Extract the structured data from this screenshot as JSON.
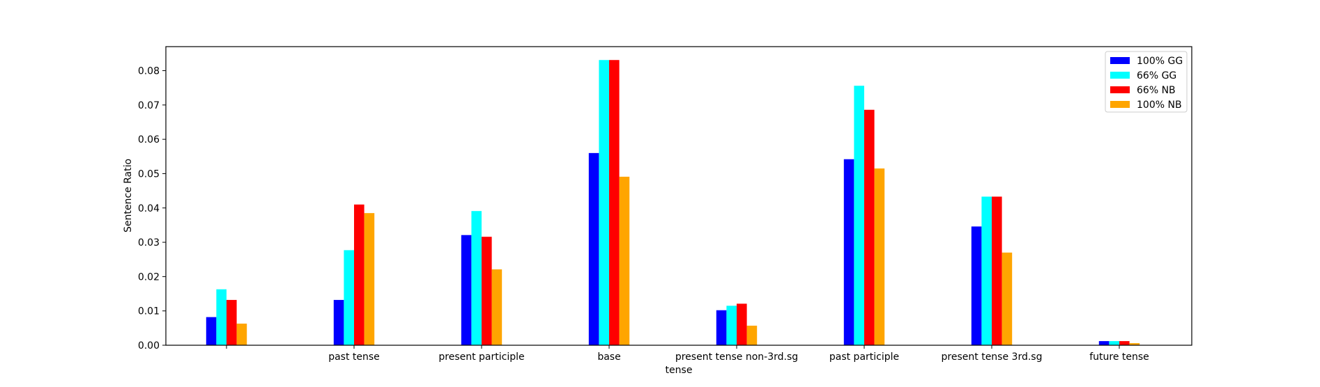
{
  "chart_data": {
    "type": "bar",
    "xlabel": "tense",
    "ylabel": "Sentence Ratio",
    "ylim": [
      0,
      0.087
    ],
    "yticks": [
      0.0,
      0.01,
      0.02,
      0.03,
      0.04,
      0.05,
      0.06,
      0.07,
      0.08
    ],
    "ytick_labels": [
      "0.00",
      "0.01",
      "0.02",
      "0.03",
      "0.04",
      "0.05",
      "0.06",
      "0.07",
      "0.08"
    ],
    "categories": [
      "",
      "past tense",
      "present participle",
      "base",
      "present tense non-3rd.sg",
      "past participle",
      "present tense 3rd.sg",
      "future tense"
    ],
    "legend_position": "top-right",
    "grid": false,
    "series": [
      {
        "name": "100% GG",
        "color": "#0000ff",
        "values": [
          0.0082,
          0.0132,
          0.0321,
          0.056,
          0.0102,
          0.0542,
          0.0346,
          0.0012
        ]
      },
      {
        "name": "66% GG",
        "color": "#00ffff",
        "values": [
          0.0163,
          0.0277,
          0.0391,
          0.0831,
          0.0115,
          0.0756,
          0.0433,
          0.0012
        ]
      },
      {
        "name": "66% NB",
        "color": "#ff0000",
        "values": [
          0.0132,
          0.041,
          0.0316,
          0.0831,
          0.0121,
          0.0686,
          0.0433,
          0.0012
        ]
      },
      {
        "name": "100% NB",
        "color": "#ffa500",
        "values": [
          0.0063,
          0.0385,
          0.0221,
          0.0491,
          0.0057,
          0.0515,
          0.027,
          0.0006
        ]
      }
    ]
  }
}
